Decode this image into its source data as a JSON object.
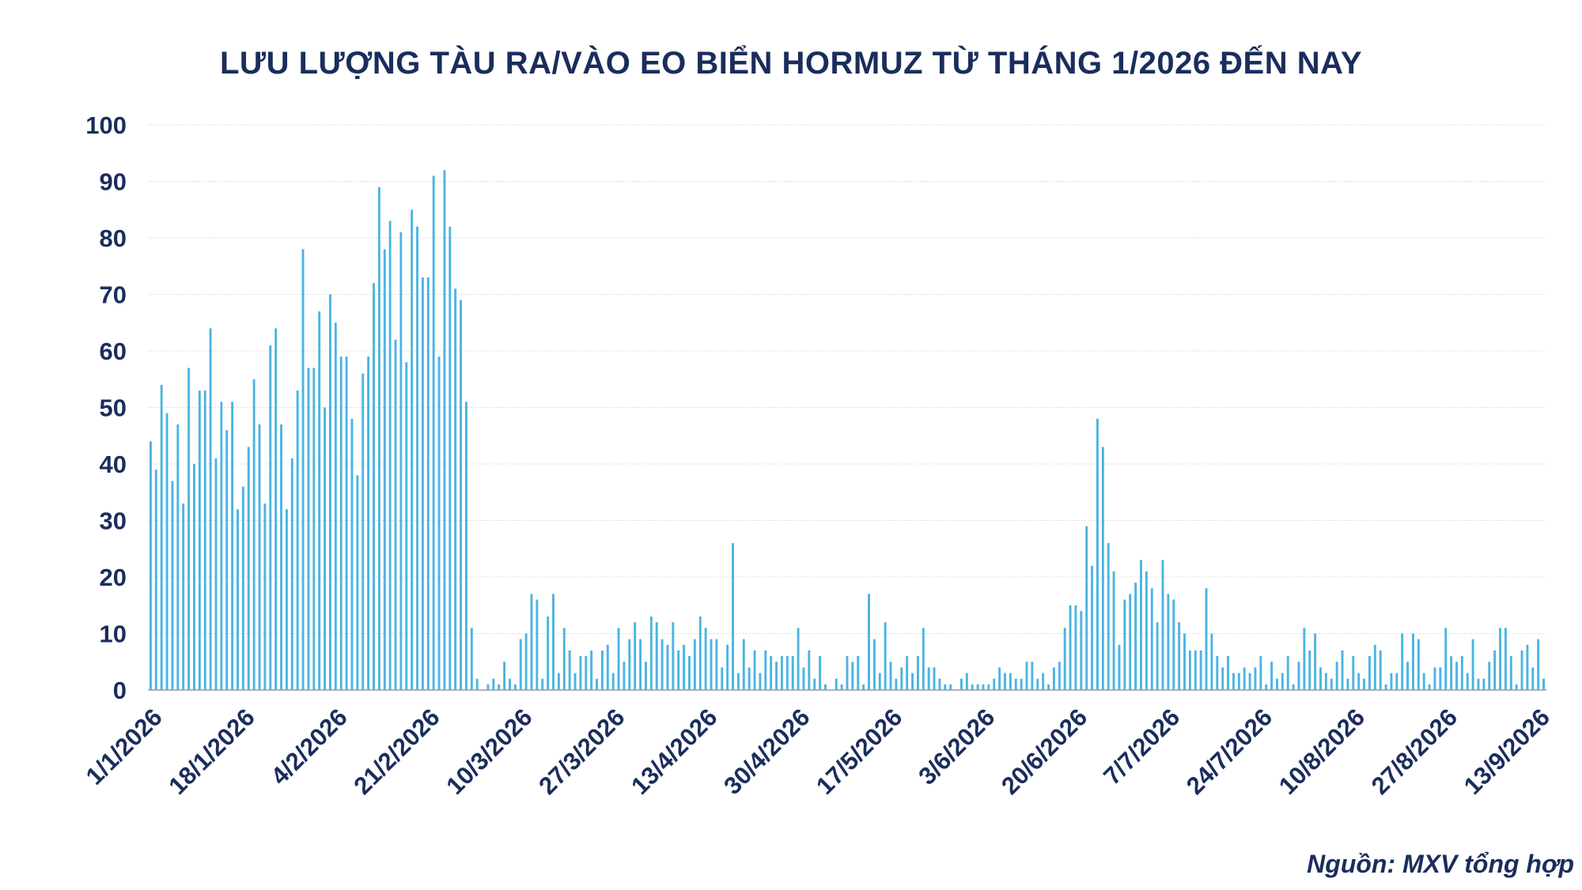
{
  "chart_data": {
    "type": "bar",
    "title": "LƯU LƯỢNG TÀU RA/VÀO EO BIỂN HORMUZ TỪ THÁNG 1/2026 ĐẾN NAY",
    "xlabel": "",
    "ylabel": "",
    "ylim": [
      0,
      100
    ],
    "yticks": [
      0,
      10,
      20,
      30,
      40,
      50,
      60,
      70,
      80,
      90,
      100
    ],
    "x_tick_labels": [
      "1/1/2026",
      "18/1/2026",
      "4/2/2026",
      "21/2/2026",
      "10/3/2026",
      "27/3/2026",
      "13/4/2026",
      "30/4/2026",
      "17/5/2026",
      "3/6/2026",
      "20/6/2026",
      "7/7/2026",
      "24/7/2026",
      "10/8/2026",
      "27/8/2026",
      "13/9/2026"
    ],
    "grid": true,
    "bar_color": "#4ab4e2",
    "start_date": "1/1/2026",
    "values": [
      44,
      39,
      54,
      49,
      37,
      47,
      33,
      57,
      40,
      53,
      53,
      64,
      41,
      51,
      46,
      51,
      32,
      36,
      43,
      55,
      47,
      33,
      61,
      64,
      47,
      32,
      41,
      53,
      78,
      57,
      57,
      67,
      50,
      70,
      65,
      59,
      59,
      48,
      38,
      56,
      59,
      72,
      89,
      78,
      83,
      62,
      81,
      58,
      85,
      82,
      73,
      73,
      91,
      59,
      92,
      82,
      71,
      69,
      51,
      11,
      2,
      0,
      1,
      2,
      1,
      5,
      2,
      1,
      9,
      10,
      17,
      16,
      2,
      13,
      17,
      3,
      11,
      7,
      3,
      6,
      6,
      7,
      2,
      7,
      8,
      3,
      11,
      5,
      9,
      12,
      9,
      5,
      13,
      12,
      9,
      8,
      12,
      7,
      8,
      6,
      9,
      13,
      11,
      9,
      9,
      4,
      8,
      26,
      3,
      9,
      4,
      7,
      3,
      7,
      6,
      5,
      6,
      6,
      6,
      11,
      4,
      7,
      2,
      6,
      1,
      0,
      2,
      1,
      6,
      5,
      6,
      1,
      17,
      9,
      3,
      12,
      5,
      2,
      4,
      6,
      3,
      6,
      11,
      4,
      4,
      2,
      1,
      1,
      0,
      2,
      3,
      1,
      1,
      1,
      1,
      2,
      4,
      3,
      3,
      2,
      2,
      5,
      5,
      2,
      3,
      1,
      4,
      5,
      11,
      15,
      15,
      14,
      29,
      22,
      48,
      43,
      26,
      21,
      8,
      16,
      17,
      19,
      23,
      21,
      18,
      12,
      23,
      17,
      16,
      12,
      10,
      7,
      7,
      7,
      18,
      10,
      6,
      4,
      6,
      3,
      3,
      4,
      3,
      4,
      6,
      1,
      5,
      2,
      3,
      6,
      1,
      5,
      11,
      7,
      10,
      4,
      3,
      2,
      5,
      7,
      2,
      6,
      3,
      2,
      6,
      8,
      7,
      1,
      3,
      3,
      10,
      5,
      10,
      9,
      3,
      1,
      4,
      4,
      11,
      6,
      5,
      6,
      3,
      9,
      2,
      2,
      5,
      7,
      11,
      11,
      6,
      1,
      7,
      8,
      4,
      9,
      2
    ]
  },
  "source": "Nguồn: MXV tổng hợp"
}
